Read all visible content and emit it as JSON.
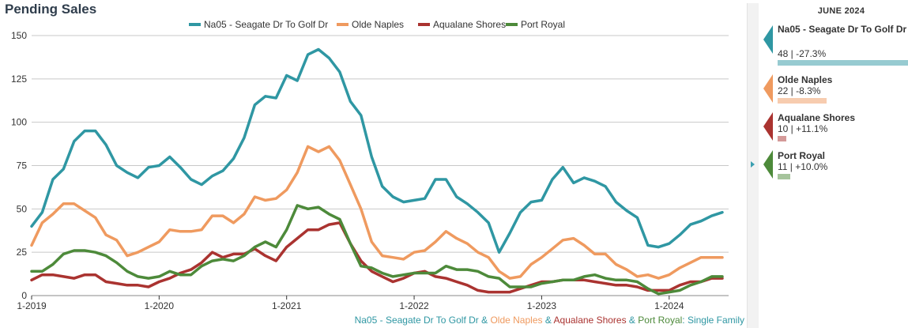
{
  "title": "Pending Sales",
  "colors": {
    "Na05": "#2f97a3",
    "OldeNaples": "#ef9a5f",
    "Aqualane": "#aa3330",
    "PortRoyal": "#4d8a3a",
    "grid": "#c8c8c8",
    "axis": "#333333"
  },
  "footer": {
    "s1": "Na05 - Seagate Dr To Golf Dr",
    "s2": "Olde Naples",
    "s3": "Aqualane Shores",
    "s4": "Port Royal",
    "amp": " & ",
    "suffix": ": Single Family"
  },
  "panel": {
    "header": "JUNE 2024",
    "entries": [
      {
        "name": "Na05 - Seagate Dr To Golf Dr",
        "value": "48 | -27.3%",
        "bar_fraction": 1.0,
        "color": "#2f97a3",
        "bar_color": "#97cbd1"
      },
      {
        "name": "Olde Naples",
        "value": "22 | -8.3%",
        "bar_fraction": 0.458,
        "color": "#ef9a5f",
        "bar_color": "#f7ccaf"
      },
      {
        "name": "Aqualane Shores",
        "value": "10 | +11.1%",
        "bar_fraction": 0.208,
        "color": "#aa3330",
        "bar_color": "#d49998"
      },
      {
        "name": "Port Royal",
        "value": "11 | +10.0%",
        "bar_fraction": 0.229,
        "color": "#4d8a3a",
        "bar_color": "#a6c49c"
      }
    ]
  },
  "chart_data": {
    "type": "line",
    "title": "Pending Sales",
    "ylim": [
      0,
      150
    ],
    "yticks": [
      0,
      25,
      50,
      75,
      100,
      125,
      150
    ],
    "xtick_labels": [
      "1-2019",
      "1-2020",
      "1-2021",
      "1-2022",
      "1-2023",
      "1-2024"
    ],
    "xtick_indices": [
      0,
      12,
      24,
      36,
      48,
      60
    ],
    "grid": true,
    "legend_position": "top",
    "series": [
      {
        "name": "Na05 - Seagate Dr To Golf Dr",
        "color": "#2f97a3",
        "values": [
          40,
          48,
          67,
          73,
          89,
          95,
          95,
          87,
          75,
          71,
          68,
          74,
          75,
          80,
          74,
          67,
          64,
          69,
          72,
          79,
          91,
          110,
          115,
          114,
          127,
          124,
          139,
          142,
          137,
          129,
          112,
          104,
          80,
          63,
          57,
          54,
          55,
          56,
          67,
          67,
          57,
          53,
          48,
          42,
          25,
          36,
          48,
          54,
          55,
          67,
          74,
          65,
          68,
          66,
          63,
          54,
          49,
          45,
          29,
          28,
          30,
          35,
          41,
          43,
          46,
          48
        ]
      },
      {
        "name": "Olde Naples",
        "color": "#ef9a5f",
        "values": [
          29,
          42,
          47,
          53,
          53,
          49,
          45,
          35,
          32,
          23,
          25,
          28,
          31,
          38,
          37,
          37,
          38,
          46,
          46,
          42,
          47,
          57,
          55,
          56,
          61,
          71,
          86,
          83,
          86,
          78,
          64,
          50,
          31,
          23,
          22,
          21,
          25,
          26,
          31,
          37,
          33,
          30,
          25,
          22,
          14,
          10,
          11,
          18,
          22,
          27,
          32,
          33,
          29,
          24,
          24,
          18,
          15,
          11,
          12,
          10,
          12,
          16,
          19,
          22,
          22,
          22
        ]
      },
      {
        "name": "Aqualane Shores",
        "color": "#aa3330",
        "values": [
          9,
          12,
          12,
          11,
          10,
          12,
          12,
          8,
          7,
          6,
          6,
          5,
          8,
          10,
          13,
          15,
          19,
          25,
          22,
          24,
          24,
          27,
          23,
          20,
          28,
          33,
          38,
          38,
          41,
          42,
          30,
          20,
          14,
          11,
          8,
          10,
          13,
          14,
          11,
          10,
          8,
          6,
          3,
          2,
          2,
          2,
          4,
          6,
          8,
          8,
          9,
          9,
          9,
          8,
          7,
          6,
          6,
          5,
          3,
          3,
          3,
          6,
          8,
          8,
          10,
          10
        ]
      },
      {
        "name": "Port Royal",
        "color": "#4d8a3a",
        "values": [
          14,
          14,
          18,
          24,
          26,
          26,
          25,
          23,
          19,
          14,
          11,
          10,
          11,
          14,
          12,
          12,
          17,
          20,
          21,
          20,
          23,
          28,
          31,
          28,
          38,
          52,
          50,
          51,
          47,
          44,
          30,
          17,
          16,
          13,
          11,
          12,
          13,
          13,
          13,
          17,
          15,
          15,
          14,
          11,
          10,
          5,
          5,
          5,
          7,
          8,
          9,
          9,
          11,
          12,
          10,
          9,
          9,
          8,
          4,
          1,
          2,
          3,
          6,
          8,
          11,
          11
        ]
      }
    ]
  }
}
